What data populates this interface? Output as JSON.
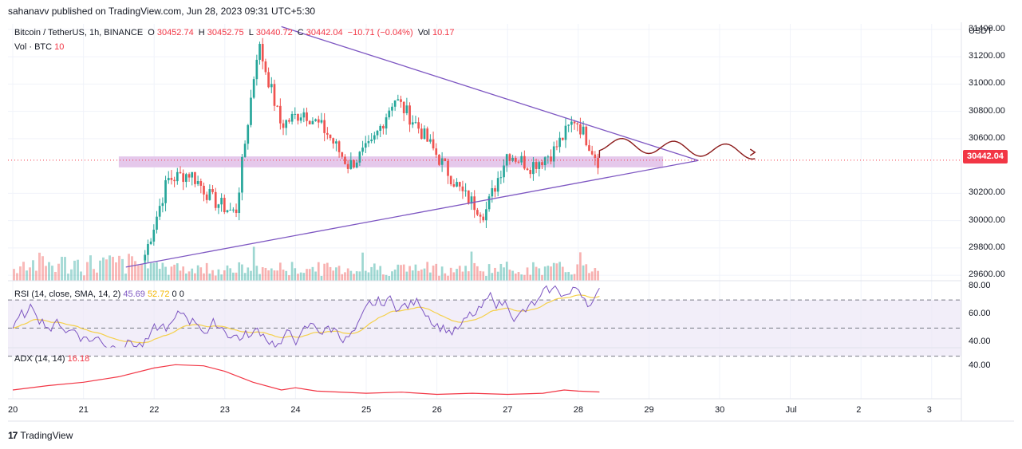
{
  "header": {
    "publisher": "sahanavv published on TradingView.com, Jun 28, 2023 09:31 UTC+5:30"
  },
  "symbol": {
    "name": "Bitcoin / TetherUS, 1h, BINANCE",
    "open_label": "O",
    "open": "30452.74",
    "high_label": "H",
    "high": "30452.75",
    "low_label": "L",
    "low": "30440.72",
    "close_label": "C",
    "close": "30442.04",
    "change": "−10.71 (−0.04%)",
    "vol_label": "Vol",
    "vol": "10.17"
  },
  "volume_legend": {
    "label": "Vol · BTC",
    "value": "10"
  },
  "rsi_legend": {
    "label": "RSI (14, close, SMA, 14, 2)",
    "v1": "45.69",
    "v2": "52.72",
    "v3": "0",
    "v4": "0"
  },
  "adx_legend": {
    "label": "ADX (14, 14)",
    "value": "16.18"
  },
  "axis": {
    "currency": "USDT",
    "price_ticks": [
      "31400.00",
      "31200.00",
      "31000.00",
      "30800.00",
      "30600.00",
      "30200.00",
      "30000.00",
      "29800.00",
      "29600.00"
    ],
    "rsi_ticks": [
      "80.00",
      "60.00",
      "40.00"
    ],
    "adx_ticks": [
      "40.00"
    ],
    "current_price": "30442.04",
    "time_ticks": [
      "20",
      "21",
      "22",
      "23",
      "24",
      "25",
      "26",
      "27",
      "28",
      "29",
      "30",
      "Jul",
      "2",
      "3"
    ]
  },
  "footer": {
    "brand": "TradingView"
  },
  "colors": {
    "up": "#26a69a",
    "down": "#ef5350",
    "triangle": "#7e57c2",
    "zone": "#e1bee7",
    "projection": "#8b1a1a",
    "rsi": "#7e57c2",
    "rsi_ma": "#f5d04a",
    "adx": "#f23645"
  },
  "chart_data": {
    "type": "candlestick",
    "timeframe": "1h",
    "price_range": [
      29560,
      31440
    ],
    "x_days": [
      "20",
      "21",
      "22",
      "23",
      "24",
      "25",
      "26",
      "27",
      "28"
    ],
    "candles_close_approx": [
      29750,
      30300,
      30350,
      30150,
      30050,
      31300,
      30700,
      30800,
      30650,
      30400,
      30550,
      30900,
      30700,
      30450,
      30200,
      30050,
      30500,
      30400,
      30500,
      30750,
      30442.04
    ],
    "support_zone": [
      30390,
      30470
    ],
    "triangle_upper": {
      "from": [
        23.8,
        31420
      ],
      "to": [
        29.7,
        30440
      ]
    },
    "triangle_lower": {
      "from": [
        21.6,
        29660
      ],
      "to": [
        29.7,
        30440
      ]
    },
    "rsi": {
      "last": 45.69,
      "ma_last": 52.72,
      "levels": [
        70,
        50,
        30
      ]
    },
    "adx": {
      "last": 16.18
    }
  }
}
